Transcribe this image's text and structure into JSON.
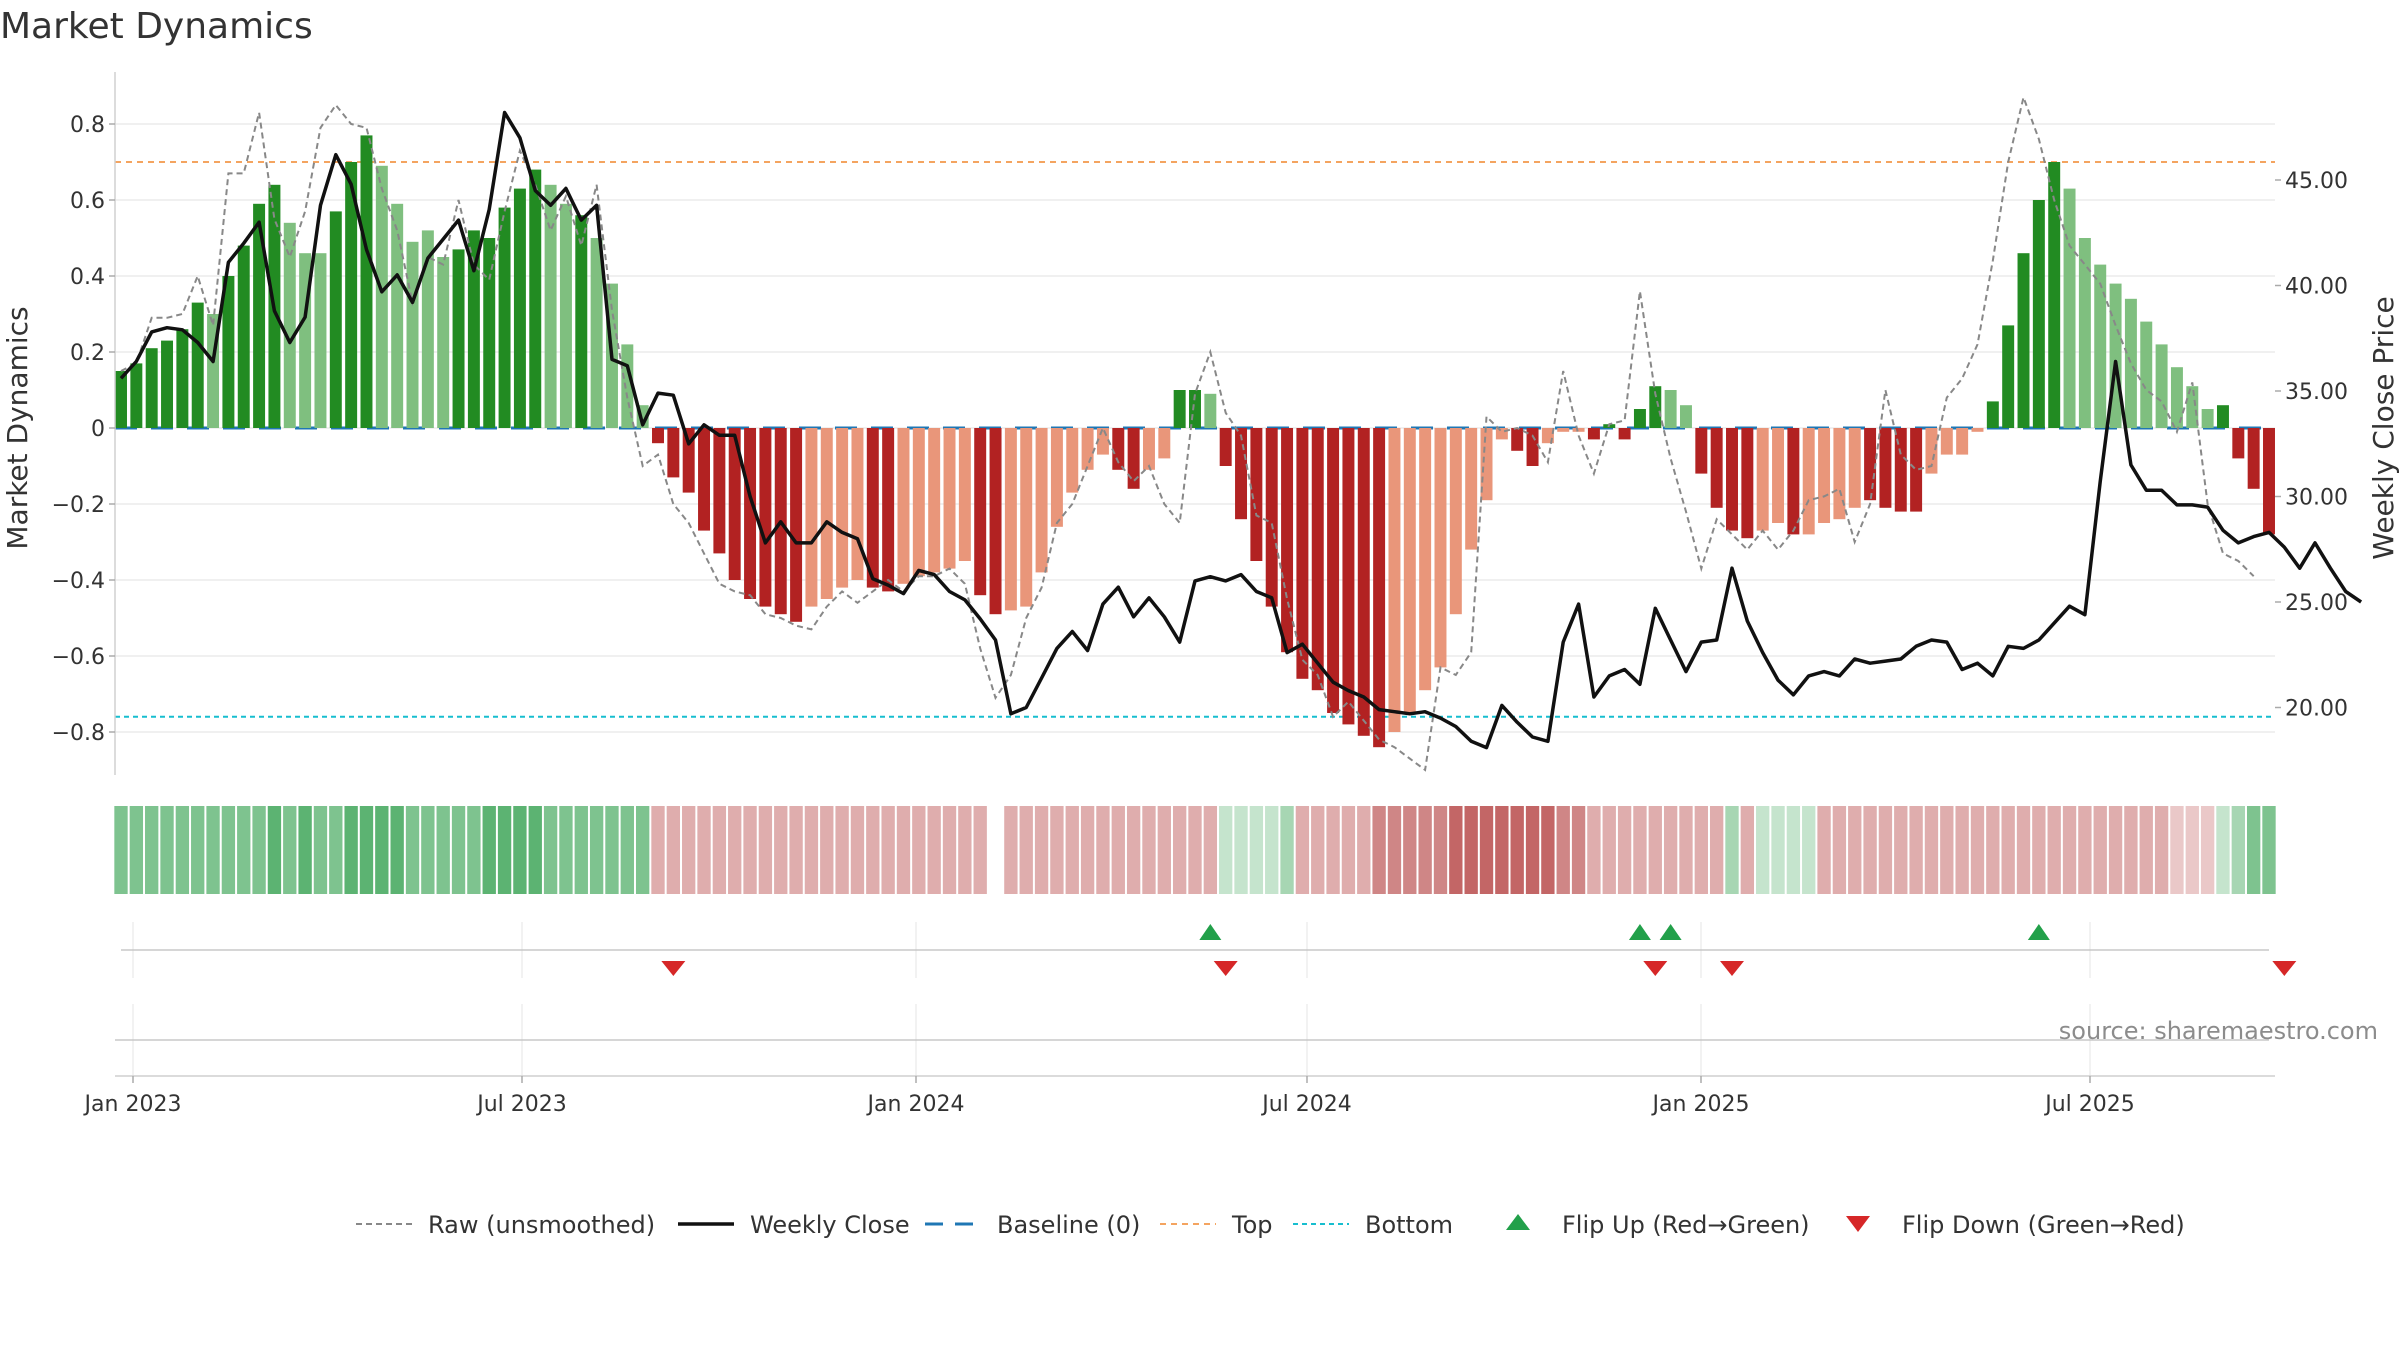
{
  "chart_data": {
    "type": "bar",
    "title": "Market Dynamics",
    "ylabel": "Market Dynamics",
    "y2label": "Weekly Close Price",
    "source": "source: sharemaestro.com",
    "ylim": [
      -0.9,
      0.85
    ],
    "y2lim": [
      16.5,
      49.9
    ],
    "yticks": [
      "0.8",
      "0.6",
      "0.4",
      "0.2",
      "0",
      "−0.2",
      "−0.4",
      "−0.6",
      "−0.8"
    ],
    "y2ticks": [
      "45.00",
      "40.00",
      "35.00",
      "30.00",
      "25.00",
      "20.00"
    ],
    "xticks": [
      "Jan 2023",
      "Jul 2023",
      "Jan 2024",
      "Jul 2024",
      "Jan 2025",
      "Jul 2025"
    ],
    "top_level": 0.7,
    "bottom_level": -0.76,
    "baseline": 0,
    "grid": true,
    "legend_position": "bottom",
    "legend": [
      {
        "key": "raw",
        "label": "Raw (unsmoothed)"
      },
      {
        "key": "close",
        "label": "Weekly Close"
      },
      {
        "key": "baseline",
        "label": "Baseline (0)"
      },
      {
        "key": "top",
        "label": "Top"
      },
      {
        "key": "bottom",
        "label": "Bottom"
      },
      {
        "key": "flip_up",
        "label": "Flip Up (Red→Green)"
      },
      {
        "key": "flip_down",
        "label": "Flip Down (Green→Red)"
      }
    ],
    "colors": {
      "dark_green": "#228b22",
      "light_green": "#7fbf7f",
      "dark_red": "#b22222",
      "light_red": "#e9967a",
      "close": "#111111",
      "raw": "#888888",
      "baseline": "#1f77b4",
      "top": "#f4a460",
      "bottom": "#17becf",
      "flip_up": "#22a04a",
      "flip_down": "#d62728"
    },
    "series": [
      {
        "name": "Market Dynamics",
        "type": "bar",
        "values": [
          0.15,
          0.17,
          0.21,
          0.23,
          0.26,
          0.33,
          0.3,
          0.4,
          0.48,
          0.59,
          0.64,
          0.54,
          0.46,
          0.46,
          0.57,
          0.7,
          0.77,
          0.69,
          0.59,
          0.49,
          0.52,
          0.45,
          0.47,
          0.52,
          0.5,
          0.58,
          0.63,
          0.68,
          0.64,
          0.59,
          0.56,
          0.5,
          0.38,
          0.22,
          0.06,
          -0.04,
          -0.13,
          -0.17,
          -0.27,
          -0.33,
          -0.4,
          -0.45,
          -0.47,
          -0.49,
          -0.51,
          -0.47,
          -0.45,
          -0.42,
          -0.4,
          -0.42,
          -0.43,
          -0.41,
          -0.39,
          -0.38,
          -0.37,
          -0.35,
          -0.44,
          -0.49,
          -0.48,
          -0.47,
          -0.38,
          -0.26,
          -0.17,
          -0.11,
          -0.07,
          -0.11,
          -0.16,
          -0.11,
          -0.08,
          0.1,
          0.1,
          0.09,
          -0.1,
          -0.24,
          -0.35,
          -0.47,
          -0.59,
          -0.66,
          -0.69,
          -0.75,
          -0.78,
          -0.81,
          -0.84,
          -0.8,
          -0.75,
          -0.69,
          -0.63,
          -0.49,
          -0.32,
          -0.19,
          -0.03,
          -0.06,
          -0.1,
          -0.04,
          -0.01,
          -0.01,
          -0.03,
          0.01,
          -0.03,
          0.05,
          0.11,
          0.1,
          0.06,
          -0.12,
          -0.21,
          -0.27,
          -0.29,
          -0.27,
          -0.25,
          -0.28,
          -0.28,
          -0.25,
          -0.24,
          -0.21,
          -0.19,
          -0.21,
          -0.22,
          -0.22,
          -0.12,
          -0.07,
          -0.07,
          -0.01,
          0.07,
          0.27,
          0.46,
          0.6,
          0.7,
          0.63,
          0.5,
          0.43,
          0.38,
          0.34,
          0.28,
          0.22,
          0.16,
          0.11,
          0.05,
          0.06,
          -0.08,
          -0.16,
          -0.28
        ],
        "colors": [
          "dark_green",
          "dark_green",
          "dark_green",
          "dark_green",
          "dark_green",
          "dark_green",
          "light_green",
          "dark_green",
          "dark_green",
          "dark_green",
          "dark_green",
          "light_green",
          "light_green",
          "light_green",
          "dark_green",
          "dark_green",
          "dark_green",
          "light_green",
          "light_green",
          "light_green",
          "light_green",
          "light_green",
          "dark_green",
          "dark_green",
          "dark_green",
          "dark_green",
          "dark_green",
          "dark_green",
          "light_green",
          "light_green",
          "dark_green",
          "light_green",
          "light_green",
          "light_green",
          "light_green",
          "dark_red",
          "dark_red",
          "dark_red",
          "dark_red",
          "dark_red",
          "dark_red",
          "dark_red",
          "dark_red",
          "dark_red",
          "dark_red",
          "light_red",
          "light_red",
          "light_red",
          "light_red",
          "dark_red",
          "dark_red",
          "light_red",
          "light_red",
          "light_red",
          "light_red",
          "light_red",
          "dark_red",
          "dark_red",
          "light_red",
          "light_red",
          "light_red",
          "light_red",
          "light_red",
          "light_red",
          "light_red",
          "dark_red",
          "dark_red",
          "light_red",
          "light_red",
          "dark_green",
          "dark_green",
          "light_green",
          "dark_red",
          "dark_red",
          "dark_red",
          "dark_red",
          "dark_red",
          "dark_red",
          "dark_red",
          "dark_red",
          "dark_red",
          "dark_red",
          "dark_red",
          "light_red",
          "light_red",
          "light_red",
          "light_red",
          "light_red",
          "light_red",
          "light_red",
          "light_red",
          "dark_red",
          "dark_red",
          "light_red",
          "light_red",
          "light_red",
          "dark_red",
          "dark_green",
          "dark_red",
          "dark_green",
          "dark_green",
          "light_green",
          "light_green",
          "dark_red",
          "dark_red",
          "dark_red",
          "dark_red",
          "light_red",
          "light_red",
          "dark_red",
          "light_red",
          "light_red",
          "light_red",
          "light_red",
          "dark_red",
          "dark_red",
          "dark_red",
          "dark_red",
          "light_red",
          "light_red",
          "light_red",
          "light_red",
          "dark_green",
          "dark_green",
          "dark_green",
          "dark_green",
          "dark_green",
          "light_green",
          "light_green",
          "light_green",
          "light_green",
          "light_green",
          "light_green",
          "light_green",
          "light_green",
          "light_green",
          "light_green",
          "dark_green",
          "dark_red",
          "dark_red",
          "dark_red"
        ]
      },
      {
        "name": "Raw (unsmoothed)",
        "type": "line",
        "axis": "left",
        "values": [
          0.15,
          0.17,
          0.29,
          0.29,
          0.3,
          0.4,
          0.27,
          0.67,
          0.67,
          0.83,
          0.55,
          0.45,
          0.57,
          0.79,
          0.85,
          0.8,
          0.79,
          0.63,
          0.52,
          0.33,
          0.45,
          0.43,
          0.6,
          0.43,
          0.39,
          0.57,
          0.73,
          0.64,
          0.52,
          0.61,
          0.48,
          0.64,
          0.31,
          0.08,
          -0.1,
          -0.07,
          -0.2,
          -0.25,
          -0.33,
          -0.41,
          -0.43,
          -0.44,
          -0.49,
          -0.5,
          -0.52,
          -0.53,
          -0.47,
          -0.43,
          -0.46,
          -0.43,
          -0.4,
          -0.43,
          -0.39,
          -0.39,
          -0.37,
          -0.41,
          -0.58,
          -0.71,
          -0.65,
          -0.5,
          -0.42,
          -0.25,
          -0.2,
          -0.1,
          0.0,
          -0.09,
          -0.14,
          -0.1,
          -0.2,
          -0.25,
          0.09,
          0.2,
          0.04,
          -0.02,
          -0.23,
          -0.25,
          -0.45,
          -0.61,
          -0.65,
          -0.76,
          -0.72,
          -0.77,
          -0.82,
          -0.84,
          -0.87,
          -0.9,
          -0.63,
          -0.65,
          -0.59,
          0.03,
          -0.01,
          0.0,
          -0.02,
          -0.09,
          0.15,
          -0.02,
          -0.12,
          0.01,
          0.02,
          0.36,
          0.09,
          -0.08,
          -0.22,
          -0.37,
          -0.24,
          -0.28,
          -0.32,
          -0.27,
          -0.32,
          -0.27,
          -0.19,
          -0.18,
          -0.16,
          -0.3,
          -0.2,
          0.1,
          -0.07,
          -0.11,
          -0.1,
          0.08,
          0.13,
          0.22,
          0.44,
          0.7,
          0.87,
          0.76,
          0.6,
          0.48,
          0.43,
          0.38,
          0.27,
          0.17,
          0.1,
          0.07,
          -0.01,
          0.12,
          -0.2,
          -0.33,
          -0.35,
          -0.39
        ]
      },
      {
        "name": "Weekly Close",
        "type": "line",
        "axis": "right",
        "values": [
          35.6,
          36.4,
          37.8,
          38,
          37.9,
          37.3,
          36.4,
          41.1,
          42,
          43,
          38.8,
          37.3,
          38.5,
          43.8,
          46.2,
          44.8,
          41.7,
          39.7,
          40.5,
          39.2,
          41.3,
          42.2,
          43.1,
          40.7,
          43.6,
          48.2,
          47,
          44.5,
          43.8,
          44.6,
          43.1,
          43.8,
          36.5,
          36.2,
          33.4,
          34.9,
          34.8,
          32.5,
          33.4,
          32.9,
          32.9,
          30,
          27.8,
          28.8,
          27.8,
          27.8,
          28.8,
          28.3,
          28,
          26.1,
          25.8,
          25.4,
          26.5,
          26.3,
          25.5,
          25.1,
          24.2,
          23.2,
          19.7,
          20,
          21.4,
          22.8,
          23.6,
          22.7,
          24.9,
          25.7,
          24.3,
          25.2,
          24.3,
          23.1,
          26,
          26.2,
          26,
          26.3,
          25.5,
          25.2,
          22.6,
          23,
          22.1,
          21.2,
          20.8,
          20.5,
          19.9,
          19.8,
          19.7,
          19.8,
          19.5,
          19.1,
          18.4,
          18.1,
          20.1,
          19.3,
          18.6,
          18.4,
          23.1,
          24.9,
          20.5,
          21.5,
          21.8,
          21.1,
          24.7,
          23.2,
          21.7,
          23.1,
          23.2,
          26.6,
          24.1,
          22.6,
          21.3,
          20.6,
          21.5,
          21.7,
          21.5,
          22.3,
          22.1,
          22.2,
          22.3,
          22.9,
          23.2,
          23.1,
          21.8,
          22.1,
          21.5,
          22.9,
          22.8,
          23.2,
          24,
          24.8,
          24.4,
          30.7,
          36.4,
          31.5,
          30.3,
          30.3,
          29.6,
          29.6,
          29.5,
          28.4,
          27.8,
          28.1,
          28.3,
          27.6,
          26.6,
          27.8,
          26.6,
          25.5,
          25
        ]
      }
    ],
    "flip_up": [
      71,
      99,
      101,
      125
    ],
    "flip_down": [
      36,
      72,
      100,
      105,
      141
    ],
    "heat_strip": [
      2,
      2,
      2,
      2,
      2,
      2,
      2,
      2,
      2,
      2,
      3,
      2,
      3,
      2,
      2,
      3,
      3,
      3,
      3,
      2,
      2,
      2,
      2,
      2,
      3,
      3,
      3,
      3,
      2,
      2,
      2,
      2,
      2,
      2,
      2,
      1,
      1,
      1,
      1,
      1,
      1,
      1,
      1,
      1,
      1,
      1,
      1,
      1,
      1,
      1,
      1,
      1,
      1,
      1,
      1,
      1,
      1,
      -1,
      1,
      1,
      1,
      1,
      1,
      1,
      1,
      1,
      1,
      1,
      1,
      1,
      1,
      1,
      0,
      0,
      0,
      0,
      1,
      1,
      1,
      1,
      1,
      1,
      2,
      2,
      2,
      2,
      2,
      3,
      3,
      3,
      3,
      3,
      3,
      3,
      2,
      2,
      1,
      1,
      1,
      1,
      1,
      1,
      1,
      1,
      1,
      1,
      1,
      0,
      0,
      0,
      0,
      1,
      1,
      1,
      1,
      1,
      1,
      1,
      1,
      1,
      1,
      1,
      1,
      1,
      1,
      1,
      1,
      1,
      1,
      1,
      1,
      1,
      1,
      1,
      0,
      0,
      0,
      0,
      1,
      2,
      2,
      2,
      2,
      2,
      2,
      1,
      1,
      1,
      1,
      1,
      1,
      0,
      0,
      0,
      1,
      1,
      1
    ],
    "heat_sign": [
      "g",
      "g",
      "g",
      "g",
      "g",
      "g",
      "g",
      "g",
      "g",
      "g",
      "g",
      "g",
      "g",
      "g",
      "g",
      "g",
      "g",
      "g",
      "g",
      "g",
      "g",
      "g",
      "g",
      "g",
      "g",
      "g",
      "g",
      "g",
      "g",
      "g",
      "g",
      "g",
      "g",
      "g",
      "g",
      "r",
      "r",
      "r",
      "r",
      "r",
      "r",
      "r",
      "r",
      "r",
      "r",
      "r",
      "r",
      "r",
      "r",
      "r",
      "r",
      "r",
      "r",
      "r",
      "r",
      "r",
      "r",
      "r",
      "r",
      "r",
      "r",
      "r",
      "r",
      "r",
      "r",
      "r",
      "r",
      "r",
      "r",
      "r",
      "r",
      "r",
      "g",
      "g",
      "g",
      "g",
      "g",
      "r",
      "r",
      "r",
      "r",
      "r",
      "r",
      "r",
      "r",
      "r",
      "r",
      "r",
      "r",
      "r",
      "r",
      "r",
      "r",
      "r",
      "r",
      "r",
      "r",
      "r",
      "r",
      "r",
      "r",
      "r",
      "r",
      "r",
      "r",
      "g",
      "r",
      "g",
      "g",
      "g",
      "g",
      "r",
      "r",
      "r",
      "r",
      "r",
      "r",
      "r",
      "r",
      "r",
      "r",
      "r",
      "r",
      "r",
      "r",
      "r",
      "r",
      "r",
      "r",
      "r",
      "r",
      "r",
      "r",
      "r",
      "r",
      "r",
      "r",
      "g",
      "g",
      "g",
      "g",
      "g",
      "g",
      "g",
      "g",
      "g",
      "g",
      "g",
      "g",
      "g",
      "g",
      "g",
      "g",
      "r",
      "r",
      "r"
    ]
  }
}
